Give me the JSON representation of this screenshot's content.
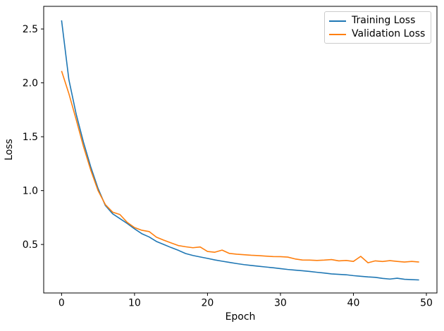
{
  "chart_data": {
    "type": "line",
    "title": "",
    "xlabel": "Epoch",
    "ylabel": "Loss",
    "grid": false,
    "legend_position": "upper right",
    "xlim": [
      -2.45,
      51.45
    ],
    "ylim": [
      0.05,
      2.71
    ],
    "xticks": [
      0,
      10,
      20,
      30,
      40,
      50
    ],
    "xtick_labels": [
      "0",
      "10",
      "20",
      "30",
      "40",
      "50"
    ],
    "yticks": [
      0.5,
      1.0,
      1.5,
      2.0,
      2.5
    ],
    "ytick_labels": [
      "0.5",
      "1.0",
      "1.5",
      "2.0",
      "2.5"
    ],
    "x": [
      0,
      1,
      2,
      3,
      4,
      5,
      6,
      7,
      8,
      9,
      10,
      11,
      12,
      13,
      14,
      15,
      16,
      17,
      18,
      19,
      20,
      21,
      22,
      23,
      24,
      25,
      26,
      27,
      28,
      29,
      30,
      31,
      32,
      33,
      34,
      35,
      36,
      37,
      38,
      39,
      40,
      41,
      42,
      43,
      44,
      45,
      46,
      47,
      48,
      49
    ],
    "series": [
      {
        "name": "Training Loss",
        "color": "#1f77b4",
        "values": [
          2.58,
          2.03,
          1.71,
          1.45,
          1.22,
          1.02,
          0.862,
          0.785,
          0.74,
          0.695,
          0.645,
          0.6,
          0.57,
          0.528,
          0.5,
          0.472,
          0.446,
          0.416,
          0.398,
          0.384,
          0.371,
          0.357,
          0.345,
          0.334,
          0.323,
          0.313,
          0.305,
          0.298,
          0.291,
          0.284,
          0.276,
          0.268,
          0.262,
          0.256,
          0.25,
          0.242,
          0.235,
          0.227,
          0.223,
          0.219,
          0.211,
          0.205,
          0.199,
          0.195,
          0.185,
          0.179,
          0.187,
          0.177,
          0.174,
          0.171
        ]
      },
      {
        "name": "Validation Loss",
        "color": "#ff7f0e",
        "values": [
          2.11,
          1.9,
          1.66,
          1.41,
          1.19,
          1.0,
          0.87,
          0.8,
          0.778,
          0.705,
          0.657,
          0.632,
          0.62,
          0.568,
          0.54,
          0.515,
          0.49,
          0.479,
          0.47,
          0.477,
          0.435,
          0.428,
          0.448,
          0.417,
          0.41,
          0.405,
          0.4,
          0.397,
          0.392,
          0.388,
          0.387,
          0.383,
          0.366,
          0.356,
          0.355,
          0.352,
          0.355,
          0.36,
          0.348,
          0.352,
          0.343,
          0.39,
          0.33,
          0.348,
          0.342,
          0.35,
          0.343,
          0.337,
          0.343,
          0.337
        ]
      }
    ]
  }
}
